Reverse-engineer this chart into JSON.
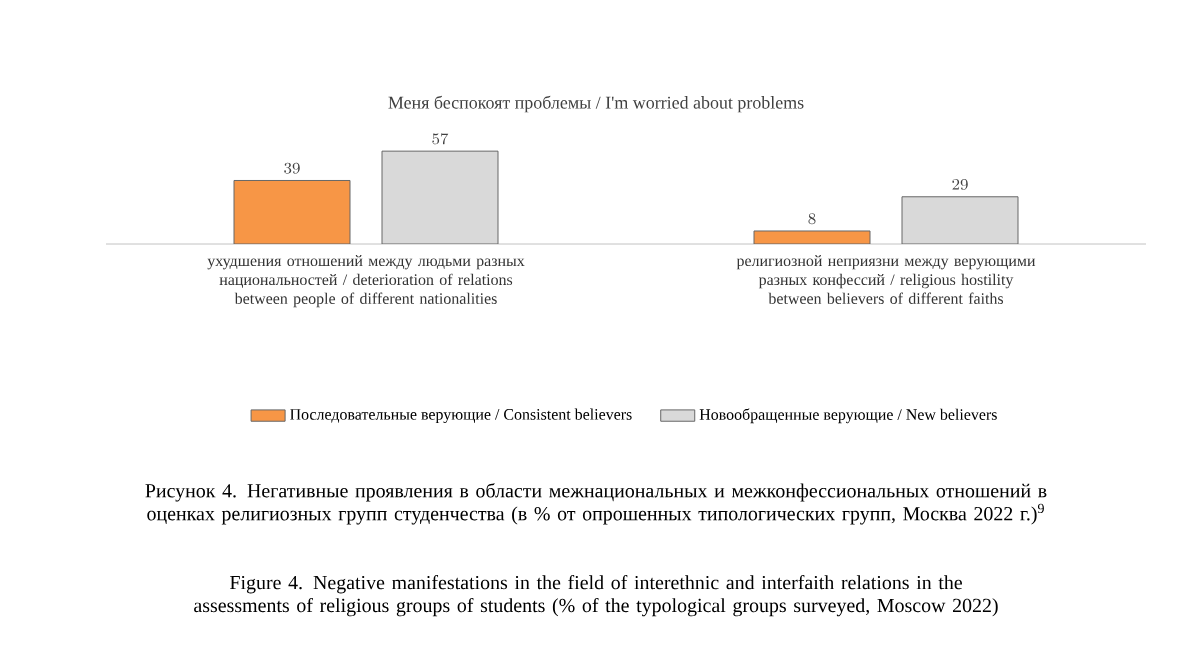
{
  "chart_data": {
    "type": "bar",
    "title": "Меня беспокоят проблемы / I'm worried about problems",
    "categories": [
      "ухудшения отношений между людьми разных национальностей / deterioration of relations between people of different nationalities",
      "религиозной неприязни между верующими разных конфессий / religious hostility between believers of different faiths"
    ],
    "series": [
      {
        "name": "Последовательные верующие /  Consistent believers",
        "color": "#f79646",
        "values": [
          39,
          8
        ]
      },
      {
        "name": "Новообращенные верующие / New believers",
        "color": "#d9d9d9",
        "values": [
          57,
          29
        ]
      }
    ],
    "data_labels": true,
    "legend": "bottom",
    "annotations": [
      "Рисунок 4. Негативные проявления в области межнациональных и межконфессиональных отношений в оценках религиозных групп студенчества (в % от опрошенных типологических групп, Москва 2022 г.)$^{9}$",
      "Figure 4. Negative manifestations in the field of interethnic and interfaith relations in the assessments of religious groups of students (% of the typological groups surveyed, Moscow 2022)"
    ]
  }
}
